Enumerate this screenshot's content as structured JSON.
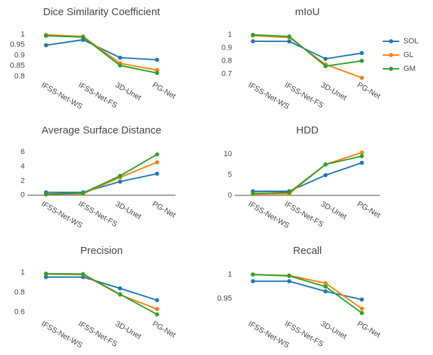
{
  "chart_data": [
    {
      "type": "line",
      "title": "Dice Similarity Coefficient",
      "categories": [
        "IFSS-Net-WS",
        "IFSS-Net-FS",
        "3D-Unet",
        "PG-Net"
      ],
      "ylim": [
        0.787,
        1.016
      ],
      "yticks": [
        0.8,
        0.85,
        0.9,
        0.95,
        1
      ],
      "series": [
        {
          "name": "SOL",
          "color": "#1f77b4",
          "values": [
            0.948,
            0.974,
            0.889,
            0.879
          ]
        },
        {
          "name": "GL",
          "color": "#ff7f0e",
          "values": [
            0.997,
            0.99,
            0.862,
            0.83
          ]
        },
        {
          "name": "GM",
          "color": "#2ca02c",
          "values": [
            0.993,
            0.987,
            0.852,
            0.816
          ]
        }
      ]
    },
    {
      "type": "line",
      "title": "mIoU",
      "categories": [
        "IFSS-Net-WS",
        "IFSS-Net-FS",
        "3D-Unet",
        "PG-Net"
      ],
      "ylim": [
        0.66,
        1.03
      ],
      "yticks": [
        0.7,
        0.8,
        0.9,
        1
      ],
      "series": [
        {
          "name": "SOL",
          "color": "#1f77b4",
          "values": [
            0.951,
            0.95,
            0.816,
            0.86
          ]
        },
        {
          "name": "GL",
          "color": "#ff7f0e",
          "values": [
            0.994,
            0.98,
            0.773,
            0.67
          ]
        },
        {
          "name": "GM",
          "color": "#2ca02c",
          "values": [
            1.0,
            0.988,
            0.76,
            0.8
          ]
        }
      ]
    },
    {
      "type": "line",
      "title": "Average Surface Distance",
      "categories": [
        "IFSS-Net-WS",
        "IFSS-Net-FS",
        "3D-Unet",
        "PG-Net"
      ],
      "ylim": [
        -0.6,
        6.6
      ],
      "yticks": [
        0,
        2,
        4,
        6
      ],
      "series": [
        {
          "name": "SOL",
          "color": "#1f77b4",
          "values": [
            0.4,
            0.4,
            1.9,
            3.0
          ]
        },
        {
          "name": "GL",
          "color": "#ff7f0e",
          "values": [
            0.1,
            0.2,
            2.5,
            4.6
          ]
        },
        {
          "name": "GM",
          "color": "#2ca02c",
          "values": [
            0.15,
            0.3,
            2.7,
            5.7
          ]
        }
      ]
    },
    {
      "type": "line",
      "title": "HDD",
      "categories": [
        "IFSS-Net-WS",
        "IFSS-Net-FS",
        "3D-Unet",
        "PG-Net"
      ],
      "ylim": [
        -1,
        11.5
      ],
      "yticks": [
        0,
        5,
        10
      ],
      "series": [
        {
          "name": "SOL",
          "color": "#1f77b4",
          "values": [
            1.0,
            1.0,
            4.9,
            7.9
          ]
        },
        {
          "name": "GL",
          "color": "#ff7f0e",
          "values": [
            0.3,
            0.4,
            7.5,
            10.4
          ]
        },
        {
          "name": "GM",
          "color": "#2ca02c",
          "values": [
            0.5,
            0.7,
            7.5,
            9.5
          ]
        }
      ]
    },
    {
      "type": "line",
      "title": "Precision",
      "categories": [
        "IFSS-Net-WS",
        "IFSS-Net-FS",
        "3D-Unet",
        "PG-Net"
      ],
      "ylim": [
        0.54,
        1.03
      ],
      "yticks": [
        0.6,
        0.8,
        1
      ],
      "series": [
        {
          "name": "SOL",
          "color": "#1f77b4",
          "values": [
            0.955,
            0.955,
            0.84,
            0.72
          ]
        },
        {
          "name": "GL",
          "color": "#ff7f0e",
          "values": [
            0.985,
            0.98,
            0.775,
            0.63
          ]
        },
        {
          "name": "GM",
          "color": "#2ca02c",
          "values": [
            0.99,
            0.985,
            0.78,
            0.575
          ]
        }
      ]
    },
    {
      "type": "line",
      "title": "Recall",
      "categories": [
        "IFSS-Net-WS",
        "IFSS-Net-FS",
        "3D-Unet",
        "PG-Net"
      ],
      "ylim": [
        0.91,
        1.01
      ],
      "yticks": [
        0.95,
        1
      ],
      "series": [
        {
          "name": "SOL",
          "color": "#1f77b4",
          "values": [
            0.986,
            0.986,
            0.965,
            0.948
          ]
        },
        {
          "name": "GL",
          "color": "#ff7f0e",
          "values": [
            1.0,
            0.998,
            0.982,
            0.929
          ]
        },
        {
          "name": "GM",
          "color": "#2ca02c",
          "values": [
            1.0,
            0.997,
            0.975,
            0.92
          ]
        }
      ]
    }
  ]
}
